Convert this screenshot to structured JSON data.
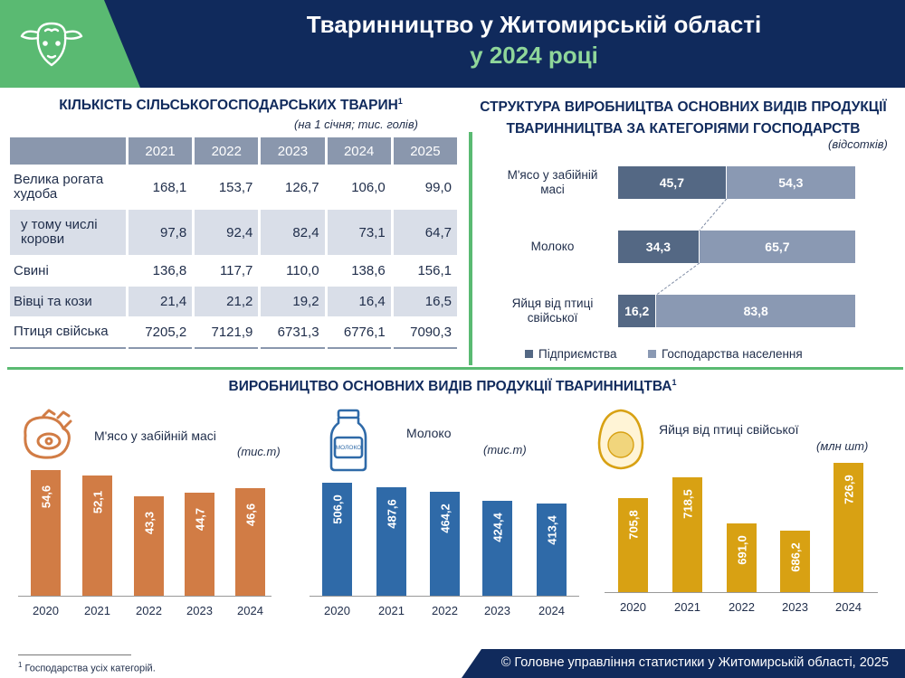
{
  "header": {
    "title": "Тваринництво у Житомирській області",
    "subtitle": "у 2024 році",
    "icon": "sheep-icon",
    "colors": {
      "navy": "#102a5c",
      "green": "#5aba72",
      "light_green": "#8fd69a"
    }
  },
  "livestock": {
    "title": "КІЛЬКІСТЬ СІЛЬСЬКОГОСПОДАРСЬКИХ ТВАРИН",
    "title_sup": "1",
    "note": "(на 1 січня; тис. голів)",
    "years": [
      "2021",
      "2022",
      "2023",
      "2024",
      "2025"
    ],
    "rows": [
      {
        "label": "Велика рогата худоба",
        "values": [
          "168,1",
          "153,7",
          "126,7",
          "106,0",
          "99,0"
        ]
      },
      {
        "label": "у тому числі корови",
        "values": [
          "97,8",
          "92,4",
          "82,4",
          "73,1",
          "64,7"
        ]
      },
      {
        "label": "Свині",
        "values": [
          "136,8",
          "117,7",
          "110,0",
          "138,6",
          "156,1"
        ]
      },
      {
        "label": "Вівці та кози",
        "values": [
          "21,4",
          "21,2",
          "19,2",
          "16,4",
          "16,5"
        ]
      },
      {
        "label": "Птиця свійська",
        "values": [
          "7205,2",
          "7121,9",
          "6731,3",
          "6776,1",
          "7090,3"
        ]
      }
    ]
  },
  "structure": {
    "title_line1": "СТРУКТУРА ВИРОБНИЦТВА ОСНОВНИХ ВИДІВ ПРОДУКЦІЇ",
    "title_line2": "ТВАРИННИЦТВА ЗА КАТЕГОРІЯМИ ГОСПОДАРСТВ",
    "note": "(відсотків)",
    "legend": [
      "Підприємства",
      "Господарства населення"
    ],
    "colors": [
      "#546884",
      "#8a99b3"
    ]
  },
  "production": {
    "title": "ВИРОБНИЦТВО ОСНОВНИХ ВИДІВ ПРОДУКЦІЇ ТВАРИННИЦТВА",
    "title_sup": "1",
    "meat": {
      "label": "М'ясо у забійній масі",
      "unit": "(тис.т)",
      "icon": "meat-icon",
      "color": "#d17c45"
    },
    "milk": {
      "label": "Молоко",
      "unit": "(тис.т)",
      "icon": "milk-bottle-icon",
      "bottle_text": "МОЛОКО",
      "color": "#2f6aa8"
    },
    "eggs": {
      "label": "Яйця від птиці свійської",
      "unit": "(млн шт)",
      "icon": "egg-icon",
      "color": "#d8a113"
    }
  },
  "chart_data": [
    {
      "type": "bar",
      "title": "СТРУКТУРА ВИРОБНИЦТВА ОСНОВНИХ ВИДІВ ПРОДУКЦІЇ ТВАРИННИЦТВА ЗА КАТЕГОРІЯМИ ГОСПОДАРСТВ",
      "orientation": "horizontal-stacked",
      "categories": [
        "М'ясо у забійній масі",
        "Молоко",
        "Яйця від птиці свійської"
      ],
      "series": [
        {
          "name": "Підприємства",
          "values": [
            45.7,
            34.3,
            16.2
          ],
          "labels": [
            "45,7",
            "34,3",
            "16,2"
          ]
        },
        {
          "name": "Господарства населення",
          "values": [
            54.3,
            65.7,
            83.8
          ],
          "labels": [
            "54,3",
            "65,7",
            "83,8"
          ]
        }
      ],
      "xlim": [
        0,
        100
      ],
      "legend": "bottom"
    },
    {
      "type": "bar",
      "title": "М'ясо у забійній масі",
      "ylabel": "(тис.т)",
      "categories": [
        "2020",
        "2021",
        "2022",
        "2023",
        "2024"
      ],
      "values": [
        54.6,
        52.1,
        43.3,
        44.7,
        46.6
      ],
      "labels": [
        "54,6",
        "52,1",
        "43,3",
        "44,7",
        "46,6"
      ]
    },
    {
      "type": "bar",
      "title": "Молоко",
      "ylabel": "(тис.т)",
      "categories": [
        "2020",
        "2021",
        "2022",
        "2023",
        "2024"
      ],
      "values": [
        506.0,
        487.6,
        464.2,
        424.4,
        413.4
      ],
      "labels": [
        "506,0",
        "487,6",
        "464,2",
        "424,4",
        "413,4"
      ]
    },
    {
      "type": "bar",
      "title": "Яйця від птиці свійської",
      "ylabel": "(млн шт)",
      "categories": [
        "2020",
        "2021",
        "2022",
        "2023",
        "2024"
      ],
      "values": [
        705.8,
        718.5,
        691.0,
        686.2,
        726.9
      ],
      "labels": [
        "705,8",
        "718,5",
        "691,0",
        "686,2",
        "726,9"
      ]
    }
  ],
  "footer": {
    "source": "© Головне управління статистики у Житомирській області, 2025",
    "footnote_sup": "1",
    "footnote": "Господарства усіх категорій."
  }
}
